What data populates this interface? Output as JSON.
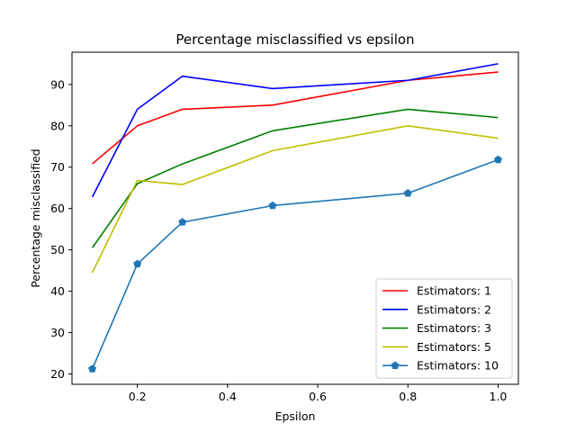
{
  "chart_data": {
    "type": "line",
    "title": "Percentage misclassified vs epsilon",
    "xlabel": "Epsilon",
    "ylabel": "Percentage misclassified",
    "xlim": [
      0.055,
      1.045
    ],
    "ylim": [
      17.5,
      97.8
    ],
    "xticks": [
      0.2,
      0.4,
      0.6,
      0.8,
      1.0
    ],
    "xtick_labels": [
      "0.2",
      "0.4",
      "0.6",
      "0.8",
      "1.0"
    ],
    "yticks": [
      20,
      30,
      40,
      50,
      60,
      70,
      80,
      90
    ],
    "ytick_labels": [
      "20",
      "30",
      "40",
      "50",
      "60",
      "70",
      "80",
      "90"
    ],
    "grid": false,
    "legend_position": "lower-right",
    "x": [
      0.1,
      0.2,
      0.3,
      0.5,
      0.8,
      1.0
    ],
    "series": [
      {
        "name": "Estimators: 1",
        "color": "#ff0000",
        "marker": "none",
        "values": [
          70.8,
          80.0,
          84.0,
          85.0,
          91.0,
          93.0
        ]
      },
      {
        "name": "Estimators: 2",
        "color": "#0000ff",
        "marker": "none",
        "values": [
          62.8,
          84.0,
          92.0,
          89.0,
          91.0,
          95.0
        ]
      },
      {
        "name": "Estimators: 3",
        "color": "#008000",
        "marker": "none",
        "values": [
          50.5,
          66.0,
          70.8,
          78.8,
          84.0,
          82.0
        ]
      },
      {
        "name": "Estimators: 5",
        "color": "#bfbf00",
        "marker": "none",
        "values": [
          44.5,
          66.8,
          65.8,
          74.0,
          80.0,
          77.0
        ]
      },
      {
        "name": "Estimators: 10",
        "color": "#1f77b4",
        "marker": "pentagon",
        "values": [
          21.2,
          46.6,
          56.7,
          60.7,
          63.7,
          71.8
        ]
      }
    ]
  }
}
